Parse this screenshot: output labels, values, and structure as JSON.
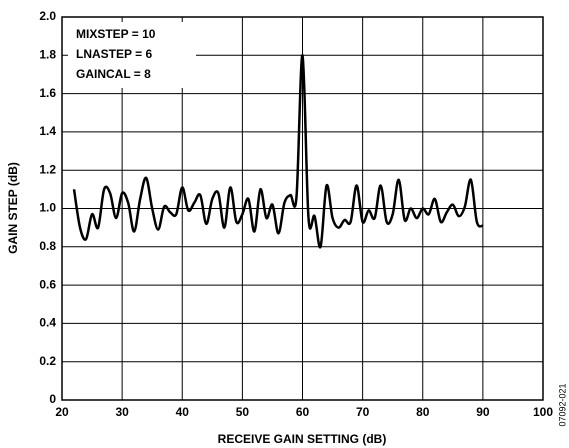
{
  "chart_data": {
    "type": "line",
    "xlabel": "RECEIVE GAIN SETTING (dB)",
    "ylabel": "GAIN STEP (dB)",
    "annotations": [
      "MIXSTEP = 10",
      "LNASTEP = 6",
      "GAINCAL = 8"
    ],
    "figure_code": "07092-021",
    "x": [
      22,
      23,
      24,
      25,
      26,
      27,
      28,
      29,
      30,
      31,
      32,
      33,
      34,
      35,
      36,
      37,
      38,
      39,
      40,
      41,
      42,
      43,
      44,
      45,
      46,
      47,
      48,
      49,
      50,
      51,
      52,
      53,
      54,
      55,
      56,
      57,
      58,
      59,
      60,
      61,
      62,
      63,
      64,
      65,
      66,
      67,
      68,
      69,
      70,
      71,
      72,
      73,
      74,
      75,
      76,
      77,
      78,
      79,
      80,
      81,
      82,
      83,
      84,
      85,
      86,
      87,
      88,
      89,
      90
    ],
    "series": [
      {
        "name": "GAIN STEP",
        "color": "#000000",
        "values": [
          1.1,
          0.9,
          0.84,
          0.97,
          0.9,
          1.1,
          1.08,
          0.95,
          1.08,
          1.03,
          0.88,
          1.05,
          1.16,
          1.0,
          0.89,
          1.01,
          0.98,
          0.97,
          1.11,
          0.99,
          1.03,
          1.07,
          0.92,
          1.05,
          1.08,
          0.9,
          1.11,
          0.93,
          0.97,
          1.05,
          0.88,
          1.1,
          0.95,
          1.02,
          0.87,
          1.03,
          1.07,
          1.06,
          1.8,
          0.95,
          0.96,
          0.8,
          1.12,
          0.95,
          0.9,
          0.94,
          0.93,
          1.12,
          0.93,
          0.99,
          0.95,
          1.12,
          0.93,
          0.97,
          1.15,
          0.94,
          1.0,
          0.95,
          1.0,
          0.97,
          1.05,
          0.93,
          0.98,
          1.02,
          0.96,
          1.01,
          1.15,
          0.93,
          0.91
        ]
      }
    ],
    "xlim": [
      20,
      100
    ],
    "xticks": [
      20,
      30,
      40,
      50,
      60,
      70,
      80,
      90,
      100
    ],
    "ylim": [
      0,
      2
    ],
    "yticks": [
      0,
      0.2,
      0.4,
      0.6,
      0.8,
      {
        "value": 1,
        "label": "1.0"
      },
      1.2,
      1.4,
      1.6,
      1.8,
      {
        "value": 2,
        "label": "2.0"
      }
    ],
    "grid": true
  }
}
